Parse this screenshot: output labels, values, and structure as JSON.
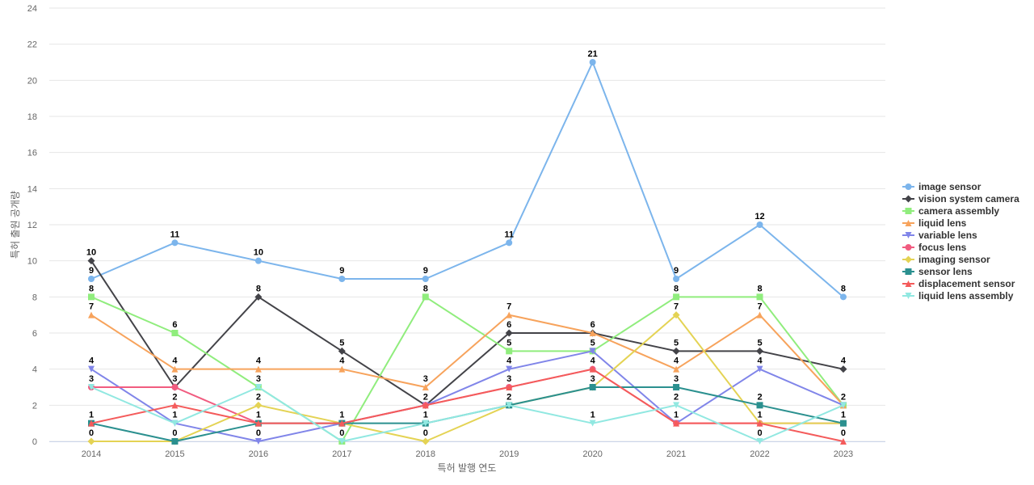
{
  "chart_data": {
    "type": "line",
    "title": "",
    "xlabel": "특허 발행 연도",
    "ylabel": "특허 출원 공개량",
    "x": [
      "2014",
      "2015",
      "2016",
      "2017",
      "2018",
      "2019",
      "2020",
      "2021",
      "2022",
      "2023"
    ],
    "ylim": [
      0,
      24
    ],
    "yticks": [
      0,
      2,
      4,
      6,
      8,
      10,
      12,
      14,
      16,
      18,
      20,
      22,
      24
    ],
    "grid": true,
    "legend": "right",
    "series": [
      {
        "name": "image sensor",
        "color": "#7cb5ec",
        "marker": "circle",
        "values": [
          9,
          11,
          10,
          9,
          9,
          11,
          21,
          9,
          12,
          8
        ]
      },
      {
        "name": "vision system camera",
        "color": "#434348",
        "marker": "diamond",
        "values": [
          10,
          3,
          8,
          5,
          2,
          6,
          6,
          5,
          5,
          4
        ]
      },
      {
        "name": "camera assembly",
        "color": "#90ed7d",
        "marker": "square",
        "values": [
          8,
          6,
          3,
          0,
          8,
          5,
          5,
          8,
          8,
          2
        ]
      },
      {
        "name": "liquid lens",
        "color": "#f7a35c",
        "marker": "triangle",
        "values": [
          7,
          4,
          4,
          4,
          3,
          7,
          6,
          4,
          7,
          2
        ]
      },
      {
        "name": "variable lens",
        "color": "#8085e9",
        "marker": "triangle-down",
        "values": [
          4,
          1,
          0,
          1,
          2,
          4,
          5,
          1,
          4,
          2
        ]
      },
      {
        "name": "focus lens",
        "color": "#f15c80",
        "marker": "circle",
        "values": [
          3,
          3,
          1,
          1,
          2,
          3,
          4,
          1,
          1,
          1
        ]
      },
      {
        "name": "imaging sensor",
        "color": "#e4d354",
        "marker": "diamond",
        "values": [
          0,
          0,
          2,
          1,
          0,
          2,
          3,
          7,
          1,
          1
        ]
      },
      {
        "name": "sensor lens",
        "color": "#2b908f",
        "marker": "square",
        "values": [
          1,
          0,
          1,
          1,
          1,
          2,
          3,
          3,
          2,
          1
        ]
      },
      {
        "name": "displacement sensor",
        "color": "#f45b5b",
        "marker": "triangle",
        "values": [
          1,
          2,
          1,
          1,
          2,
          3,
          4,
          1,
          1,
          0
        ]
      },
      {
        "name": "liquid lens assembly",
        "color": "#91e8e1",
        "marker": "triangle-down",
        "values": [
          3,
          1,
          3,
          0,
          1,
          2,
          1,
          2,
          0,
          2
        ]
      }
    ]
  }
}
